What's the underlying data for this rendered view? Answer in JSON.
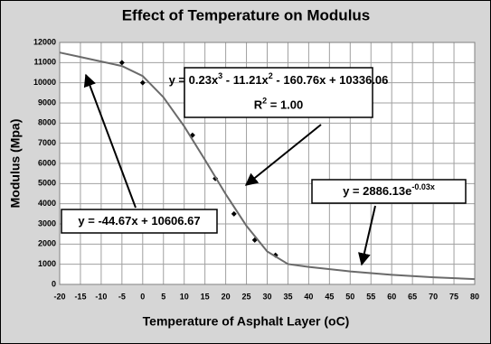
{
  "chart_data": {
    "type": "scatter",
    "title": "Effect of Temperature on Modulus",
    "x_label": "Temperature of Asphalt Layer (oC)",
    "y_label": "Modulus (Mpa)",
    "xlim": [
      -20,
      80
    ],
    "xticks": [
      -20,
      -15,
      -10,
      -5,
      0,
      5,
      10,
      15,
      20,
      25,
      30,
      35,
      40,
      45,
      50,
      55,
      60,
      65,
      70,
      75,
      80
    ],
    "ylim": [
      0,
      12000
    ],
    "yticks": [
      0,
      1000,
      2000,
      3000,
      4000,
      5000,
      6000,
      7000,
      8000,
      9000,
      10000,
      11000,
      12000
    ],
    "grid": true,
    "series": [
      {
        "mode": "markers",
        "color": "#000000",
        "x": [
          -5,
          0,
          12,
          17.5,
          22,
          27,
          32
        ],
        "values": [
          11000,
          10000,
          7400,
          5250,
          3500,
          2200,
          1450
        ]
      },
      {
        "mode": "line",
        "color": "#6a6a6a",
        "x": [
          -20,
          -15,
          -10,
          -5,
          0,
          5,
          10,
          15,
          20,
          25,
          30,
          35,
          40,
          50,
          60,
          70,
          80
        ],
        "values": [
          11500,
          11277,
          11053,
          10830,
          10336,
          9281,
          7837,
          6179,
          4477,
          2905,
          1634,
          1010,
          869,
          644,
          477,
          354,
          262
        ]
      }
    ],
    "annotations": [
      {
        "lines": [
          [
            "y = 0.23x",
            "3",
            " - 11.21x",
            "2",
            " - 160.76x + 10336.06"
          ],
          [
            "R",
            "2",
            " = 1.00"
          ]
        ]
      },
      {
        "lines": [
          [
            "y = -44.67x + 10606.67"
          ]
        ]
      },
      {
        "lines": [
          [
            "y = 2886.13e",
            "-0.03x"
          ]
        ]
      }
    ]
  }
}
